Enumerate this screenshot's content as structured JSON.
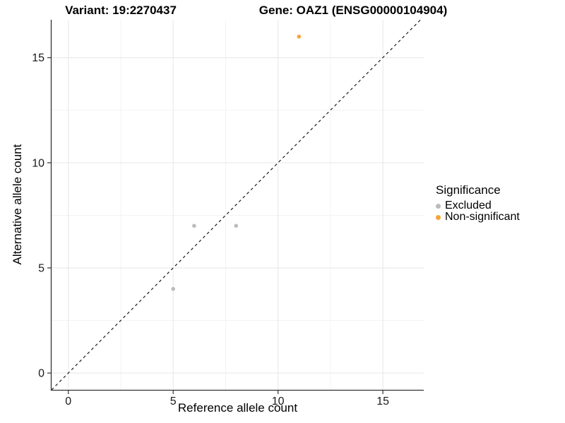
{
  "figure": {
    "title_left": "Variant: 19:2270437",
    "title_right": "Gene: OAZ1 (ENSG00000104904)"
  },
  "chart_data": {
    "type": "scatter",
    "title": "Variant: 19:2270437 / Gene: OAZ1 (ENSG00000104904)",
    "xlabel": "Reference allele count",
    "ylabel": "Alternative allele count",
    "xlim": [
      -0.8,
      16.95
    ],
    "ylim": [
      -0.8,
      16.8
    ],
    "x_ticks": [
      0,
      5,
      10,
      15
    ],
    "y_ticks": [
      0,
      5,
      10,
      15
    ],
    "x_minor_ticks": [
      2.5,
      7.5,
      12.5
    ],
    "y_minor_ticks": [
      2.5,
      7.5,
      12.5
    ],
    "grid": "major+minor",
    "identity_line": {
      "type": "dashed",
      "equation": "y = x",
      "color": "#1a1a1a"
    },
    "series": [
      {
        "name": "Excluded",
        "color": "#bbbbbb",
        "points": [
          [
            5,
            4
          ],
          [
            6,
            7
          ],
          [
            8,
            7
          ]
        ]
      },
      {
        "name": "Non-significant",
        "color": "#f7a435",
        "points": [
          [
            11,
            16
          ]
        ]
      }
    ],
    "legend": {
      "title": "Significance",
      "position": "right",
      "entries": [
        {
          "label": "Excluded",
          "color": "#bbbbbb"
        },
        {
          "label": "Non-significant",
          "color": "#f7a435"
        }
      ]
    }
  },
  "colors": {
    "background": "#ffffff",
    "grid_major": "#e6e6e6",
    "grid_minor": "#f3f3f3",
    "axis_line": "#333333",
    "tick_label": "#1a1a1a"
  }
}
